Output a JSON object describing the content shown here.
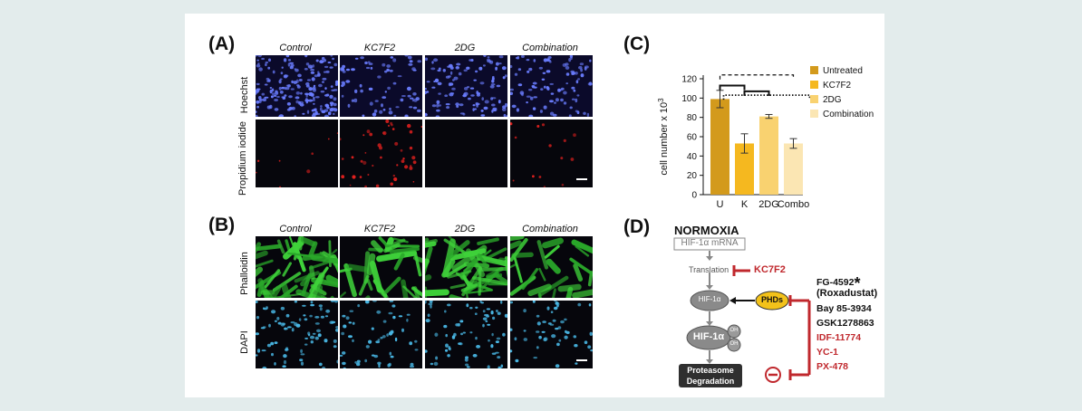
{
  "panels": {
    "A": {
      "label": "(A)",
      "columns": [
        "Control",
        "KC7F2",
        "2DG",
        "Combination"
      ],
      "rows": [
        "Hoechst",
        "Propidium iodide"
      ]
    },
    "B": {
      "label": "(B)",
      "columns": [
        "Control",
        "KC7F2",
        "2DG",
        "Combination"
      ],
      "rows": [
        "Phalloidin",
        "DAPI"
      ]
    },
    "C": {
      "label": "(C)"
    },
    "D": {
      "label": "(D)",
      "title": "NORMOXIA",
      "mrna": "HIF-1α mRNA",
      "translation": "Translation",
      "kc7f2": "KC7F2",
      "hif": "HIF-1α",
      "phds": "PHDs",
      "oh": "OH",
      "proteasome": "Proteasome",
      "degradation": "Degradation",
      "fg": "FG-4592",
      "asterisk": "*",
      "roxadustat": "(Roxadustat)",
      "inhibitors_black": [
        "Bay 85-3934",
        "GSK1278863"
      ],
      "inhibitors_red": [
        "IDF-11774",
        "YC-1",
        "PX-478"
      ]
    }
  },
  "chart_data": {
    "type": "bar",
    "categories": [
      "U",
      "K",
      "2DG",
      "Combo"
    ],
    "values": [
      99,
      53,
      81,
      53
    ],
    "errors": [
      9,
      10,
      2,
      5
    ],
    "ylabel": "cell number x 10",
    "ylabel_sup": "3",
    "ylim": [
      0,
      120
    ],
    "yticks": [
      0,
      20,
      40,
      60,
      80,
      100,
      120
    ],
    "legend": [
      "Untreated",
      "KC7F2",
      "2DG",
      "Combination"
    ],
    "legend_position": "right",
    "colors": [
      "#d39a1c",
      "#f5b81f",
      "#f9d270",
      "#fbe6b3"
    ]
  }
}
